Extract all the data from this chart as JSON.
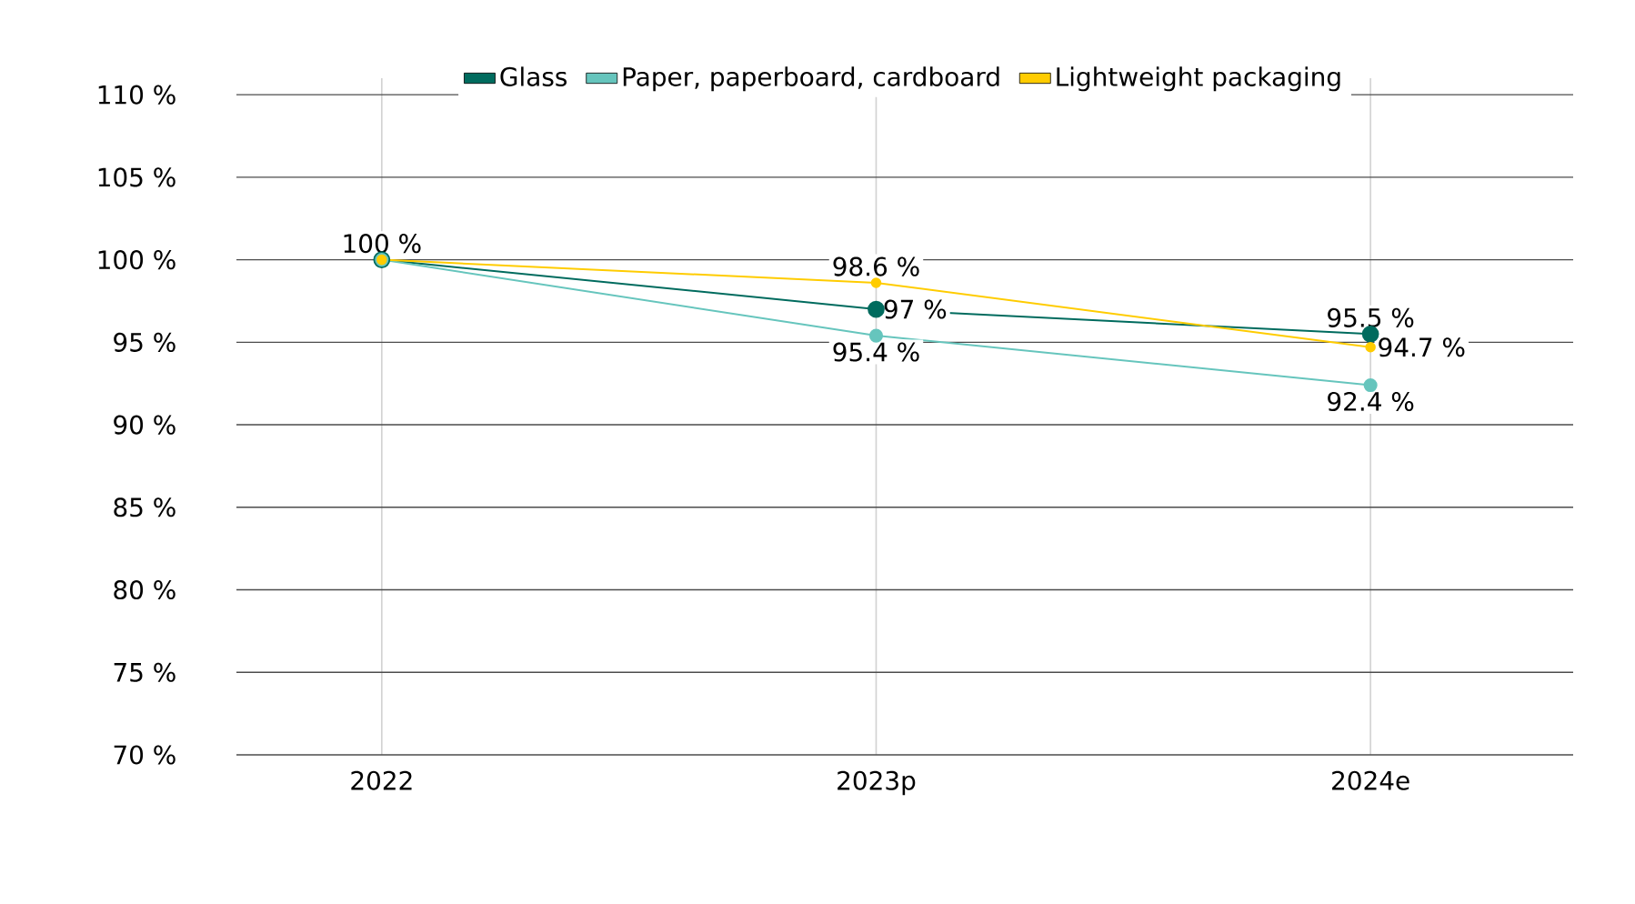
{
  "chart_data": {
    "type": "line",
    "categories": [
      "2022",
      "2023p",
      "2024e"
    ],
    "series": [
      {
        "name": "Glass",
        "color": "#006b5e",
        "values": [
          100,
          97,
          95.5
        ],
        "value_labels": [
          "100 %",
          "97 %",
          "95.5 %"
        ]
      },
      {
        "name": "Paper, paperboard, cardboard",
        "color": "#66c5bd",
        "values": [
          100,
          95.4,
          92.4
        ],
        "value_labels": [
          null,
          "95.4 %",
          "92.4 %"
        ]
      },
      {
        "name": "Lightweight packaging",
        "color": "#ffcc00",
        "values": [
          100,
          98.6,
          94.7
        ],
        "value_labels": [
          null,
          "98.6 %",
          "94.7 %"
        ]
      }
    ],
    "ylim": [
      70,
      111
    ],
    "yticks": [
      {
        "value": 70,
        "label": "70 %"
      },
      {
        "value": 75,
        "label": "75 %"
      },
      {
        "value": 80,
        "label": "80 %"
      },
      {
        "value": 85,
        "label": "85 %"
      },
      {
        "value": 90,
        "label": "90 %"
      },
      {
        "value": 95,
        "label": "95 %"
      },
      {
        "value": 100,
        "label": "100 %"
      },
      {
        "value": 105,
        "label": "105 %"
      },
      {
        "value": 110,
        "label": "110 %"
      }
    ],
    "grid": true,
    "legend": "top",
    "marker": "circle",
    "line_style": "solid"
  }
}
